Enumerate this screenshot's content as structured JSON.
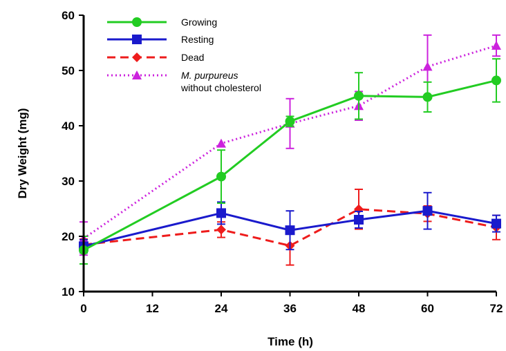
{
  "chart_data": {
    "type": "line",
    "xlabel": "Time (h)",
    "ylabel": "Dry Weight (mg)",
    "xlim": [
      0,
      72
    ],
    "ylim": [
      10,
      60
    ],
    "xticks": [
      0,
      12,
      24,
      36,
      48,
      60,
      72
    ],
    "yticks": [
      10,
      20,
      30,
      40,
      50,
      60
    ],
    "grid": false,
    "legend_position": "top-left",
    "x": [
      0,
      24,
      36,
      48,
      60,
      72
    ],
    "series": [
      {
        "name": "Growing",
        "color": "#22cc22",
        "line_style": "solid",
        "marker": "circle",
        "values": [
          17.5,
          30.8,
          40.8,
          45.4,
          45.2,
          48.2
        ],
        "errors": [
          2.5,
          4.8,
          0.9,
          4.2,
          2.7,
          3.9
        ]
      },
      {
        "name": "Resting",
        "color": "#1a1acc",
        "line_style": "solid",
        "marker": "square",
        "values": [
          18.2,
          24.2,
          21.1,
          23.0,
          24.6,
          22.3
        ],
        "errors": [
          1.2,
          2.0,
          3.5,
          1.5,
          3.3,
          1.5
        ]
      },
      {
        "name": "Dead",
        "color": "#ee1c1c",
        "line_style": "dashed",
        "marker": "diamond",
        "values": [
          18.5,
          21.2,
          18.3,
          24.9,
          24.1,
          21.6
        ],
        "errors": [
          1.0,
          1.4,
          3.5,
          3.6,
          1.4,
          2.2
        ]
      },
      {
        "name_line1": "M. purpureus",
        "name_line2": "without cholesterol",
        "color": "#cc22dd",
        "line_style": "dotted",
        "marker": "triangle",
        "values": [
          19.6,
          36.8,
          40.4,
          43.6,
          50.7,
          54.5
        ],
        "errors": [
          3.0,
          0.0,
          4.5,
          2.6,
          5.7,
          1.9
        ]
      }
    ]
  }
}
